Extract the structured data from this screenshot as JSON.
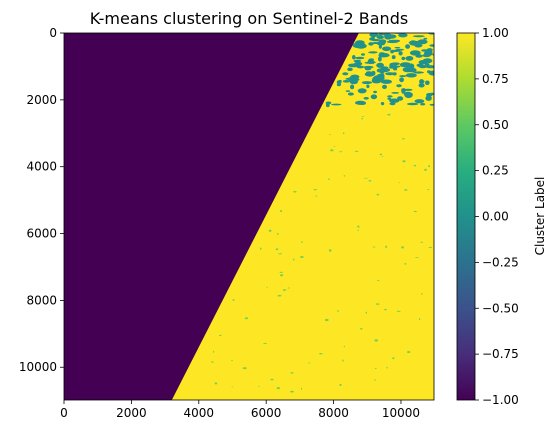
{
  "chart_data": {
    "type": "heatmap",
    "title": "K-means clustering on Sentinel-2 Bands",
    "xlabel": "",
    "ylabel": "",
    "x_range": [
      0,
      10980
    ],
    "y_range": [
      0,
      10980
    ],
    "y_inverted": true,
    "x_ticks": [
      0,
      2000,
      4000,
      6000,
      8000,
      10000
    ],
    "y_ticks": [
      0,
      2000,
      4000,
      6000,
      8000,
      10000
    ],
    "clusters": [
      {
        "label": -1,
        "description": "no data (masked region)",
        "color": "#440154"
      },
      {
        "label": 0,
        "description": "cluster 0 (scattered patches, upper right)",
        "color": "#21918c"
      },
      {
        "label": 1,
        "description": "cluster 1 (dominant)",
        "color": "#fde725"
      }
    ],
    "nodata_boundary": {
      "top_x": 8750,
      "bottom_x": 3200
    },
    "colorbar": {
      "label": "Cluster Label",
      "range": [
        -1.0,
        1.0
      ],
      "ticks": [
        "1.00",
        "0.75",
        "0.50",
        "0.25",
        "0.00",
        "−0.25",
        "−0.50",
        "−0.75",
        "−1.00"
      ],
      "colormap": "viridis"
    }
  }
}
